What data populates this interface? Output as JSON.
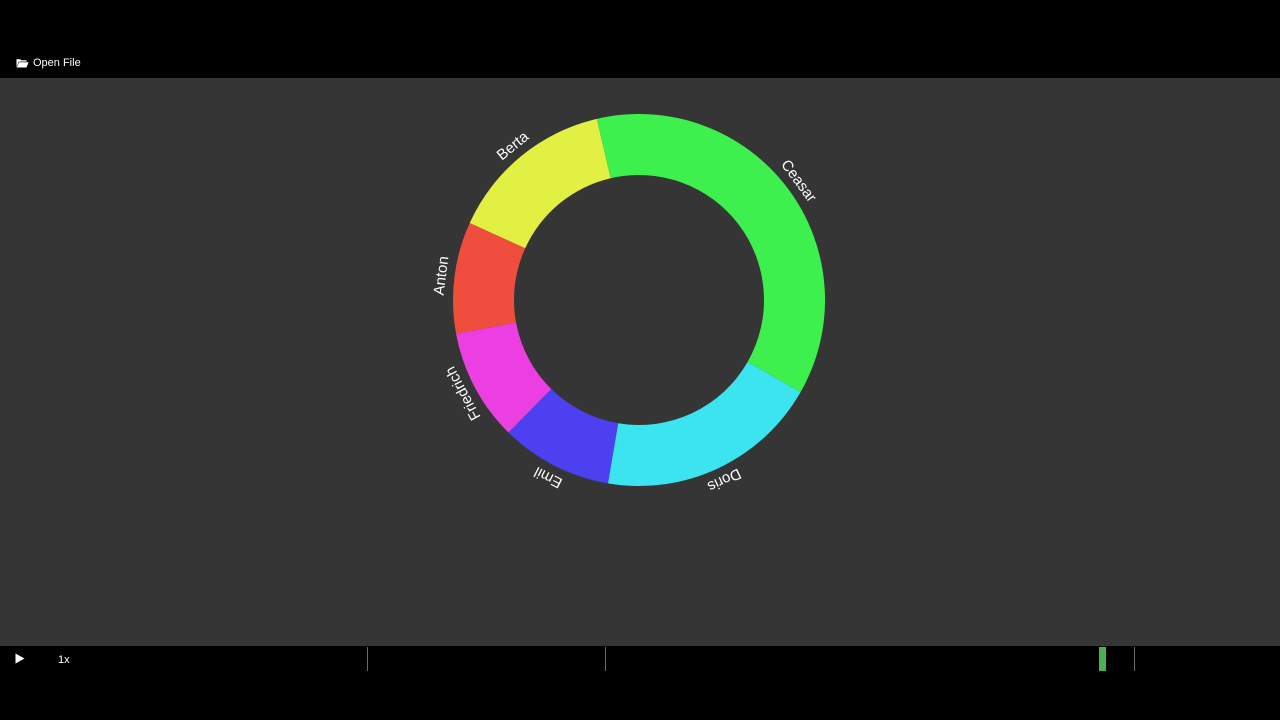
{
  "toolbar": {
    "open_file_label": "Open File",
    "open_file_icon": "folder-open-icon"
  },
  "player": {
    "play_icon": "play-icon",
    "speed_label": "1x",
    "progress": 0.818,
    "markers": [
      0.2,
      0.4,
      0.8443
    ],
    "playhead_color": "#4caf50"
  },
  "chart_data": {
    "type": "donut",
    "title": "",
    "background": "#353535",
    "series": [
      {
        "name": "Anton",
        "value": 10,
        "color": "#ef4d3e"
      },
      {
        "name": "Berta",
        "value": 15,
        "color": "#e2ef43"
      },
      {
        "name": "Ceasar",
        "value": 38,
        "color": "#3ef04e"
      },
      {
        "name": "Doris",
        "value": 20,
        "color": "#3ce4ef"
      },
      {
        "name": "Emil",
        "value": 10,
        "color": "#4d40f1"
      },
      {
        "name": "Friedrich",
        "value": 10,
        "color": "#ec3fe2"
      }
    ]
  }
}
